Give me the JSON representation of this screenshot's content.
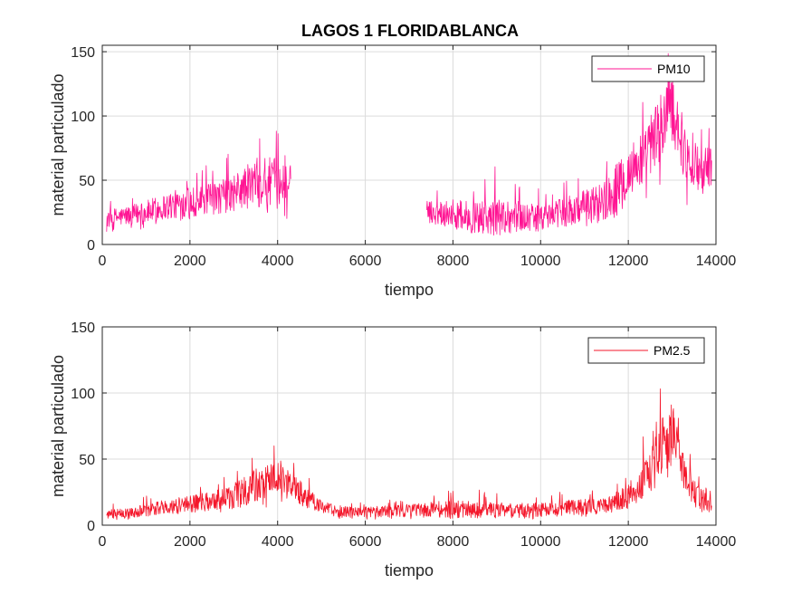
{
  "chart_data": [
    {
      "type": "line",
      "title": "LAGOS 1 FLORIDABLANCA",
      "xlabel": "tiempo",
      "ylabel": "material particulado",
      "xlim": [
        0,
        14000
      ],
      "ylim": [
        0,
        155
      ],
      "xticks": [
        0,
        2000,
        4000,
        6000,
        8000,
        10000,
        12000,
        14000
      ],
      "yticks": [
        0,
        50,
        100,
        150
      ],
      "grid": true,
      "legend": "top-right",
      "series": [
        {
          "name": "PM10",
          "color": "#ff1493",
          "envelope": {
            "x": [
              100,
              500,
              1000,
              1500,
              2000,
              2500,
              3000,
              3500,
              4000,
              4300,
              7400,
              8000,
              8500,
              9000,
              9500,
              10000,
              10500,
              11000,
              11500,
              12000,
              12500,
              12800,
              13000,
              13300,
              13600,
              13900
            ],
            "low": [
              8,
              10,
              12,
              15,
              17,
              20,
              22,
              25,
              22,
              18,
              12,
              12,
              9,
              10,
              10,
              10,
              12,
              14,
              18,
              25,
              35,
              40,
              45,
              30,
              30,
              35
            ],
            "mid": [
              20,
              22,
              25,
              30,
              33,
              35,
              40,
              48,
              50,
              45,
              25,
              25,
              20,
              22,
              22,
              20,
              25,
              28,
              35,
              55,
              75,
              95,
              110,
              70,
              60,
              60
            ],
            "high": [
              35,
              38,
              45,
              55,
              60,
              65,
              75,
              95,
              88,
              80,
              45,
              50,
              55,
              65,
              55,
              45,
              52,
              65,
              80,
              100,
              130,
              145,
              155,
              105,
              95,
              95
            ]
          }
        }
      ]
    },
    {
      "type": "line",
      "title": "",
      "xlabel": "tiempo",
      "ylabel": "material particulado",
      "xlim": [
        0,
        14000
      ],
      "ylim": [
        0,
        150
      ],
      "xticks": [
        0,
        2000,
        4000,
        6000,
        8000,
        10000,
        12000,
        14000
      ],
      "yticks": [
        0,
        50,
        100,
        150
      ],
      "grid": true,
      "legend": "top-right",
      "series": [
        {
          "name": "PM2.5",
          "color": "#f4172b",
          "envelope": {
            "x": [
              100,
              500,
              1000,
              1500,
              2000,
              2500,
              3000,
              3500,
              4000,
              4500,
              5000,
              5500,
              6000,
              7000,
              8000,
              9000,
              10000,
              11000,
              11500,
              12000,
              12500,
              12800,
              13000,
              13300,
              13600,
              13900
            ],
            "low": [
              3,
              4,
              5,
              7,
              8,
              8,
              10,
              12,
              15,
              10,
              5,
              4,
              4,
              4,
              4,
              3,
              4,
              6,
              6,
              10,
              20,
              30,
              35,
              15,
              10,
              8
            ],
            "mid": [
              8,
              9,
              11,
              14,
              16,
              18,
              22,
              30,
              35,
              25,
              13,
              10,
              10,
              11,
              12,
              11,
              12,
              14,
              15,
              22,
              40,
              60,
              75,
              35,
              22,
              18
            ],
            "high": [
              16,
              18,
              22,
              28,
              32,
              35,
              45,
              62,
              60,
              45,
              25,
              20,
              18,
              22,
              30,
              25,
              25,
              28,
              30,
              45,
              80,
              115,
              125,
              60,
              45,
              40
            ]
          }
        }
      ]
    }
  ]
}
